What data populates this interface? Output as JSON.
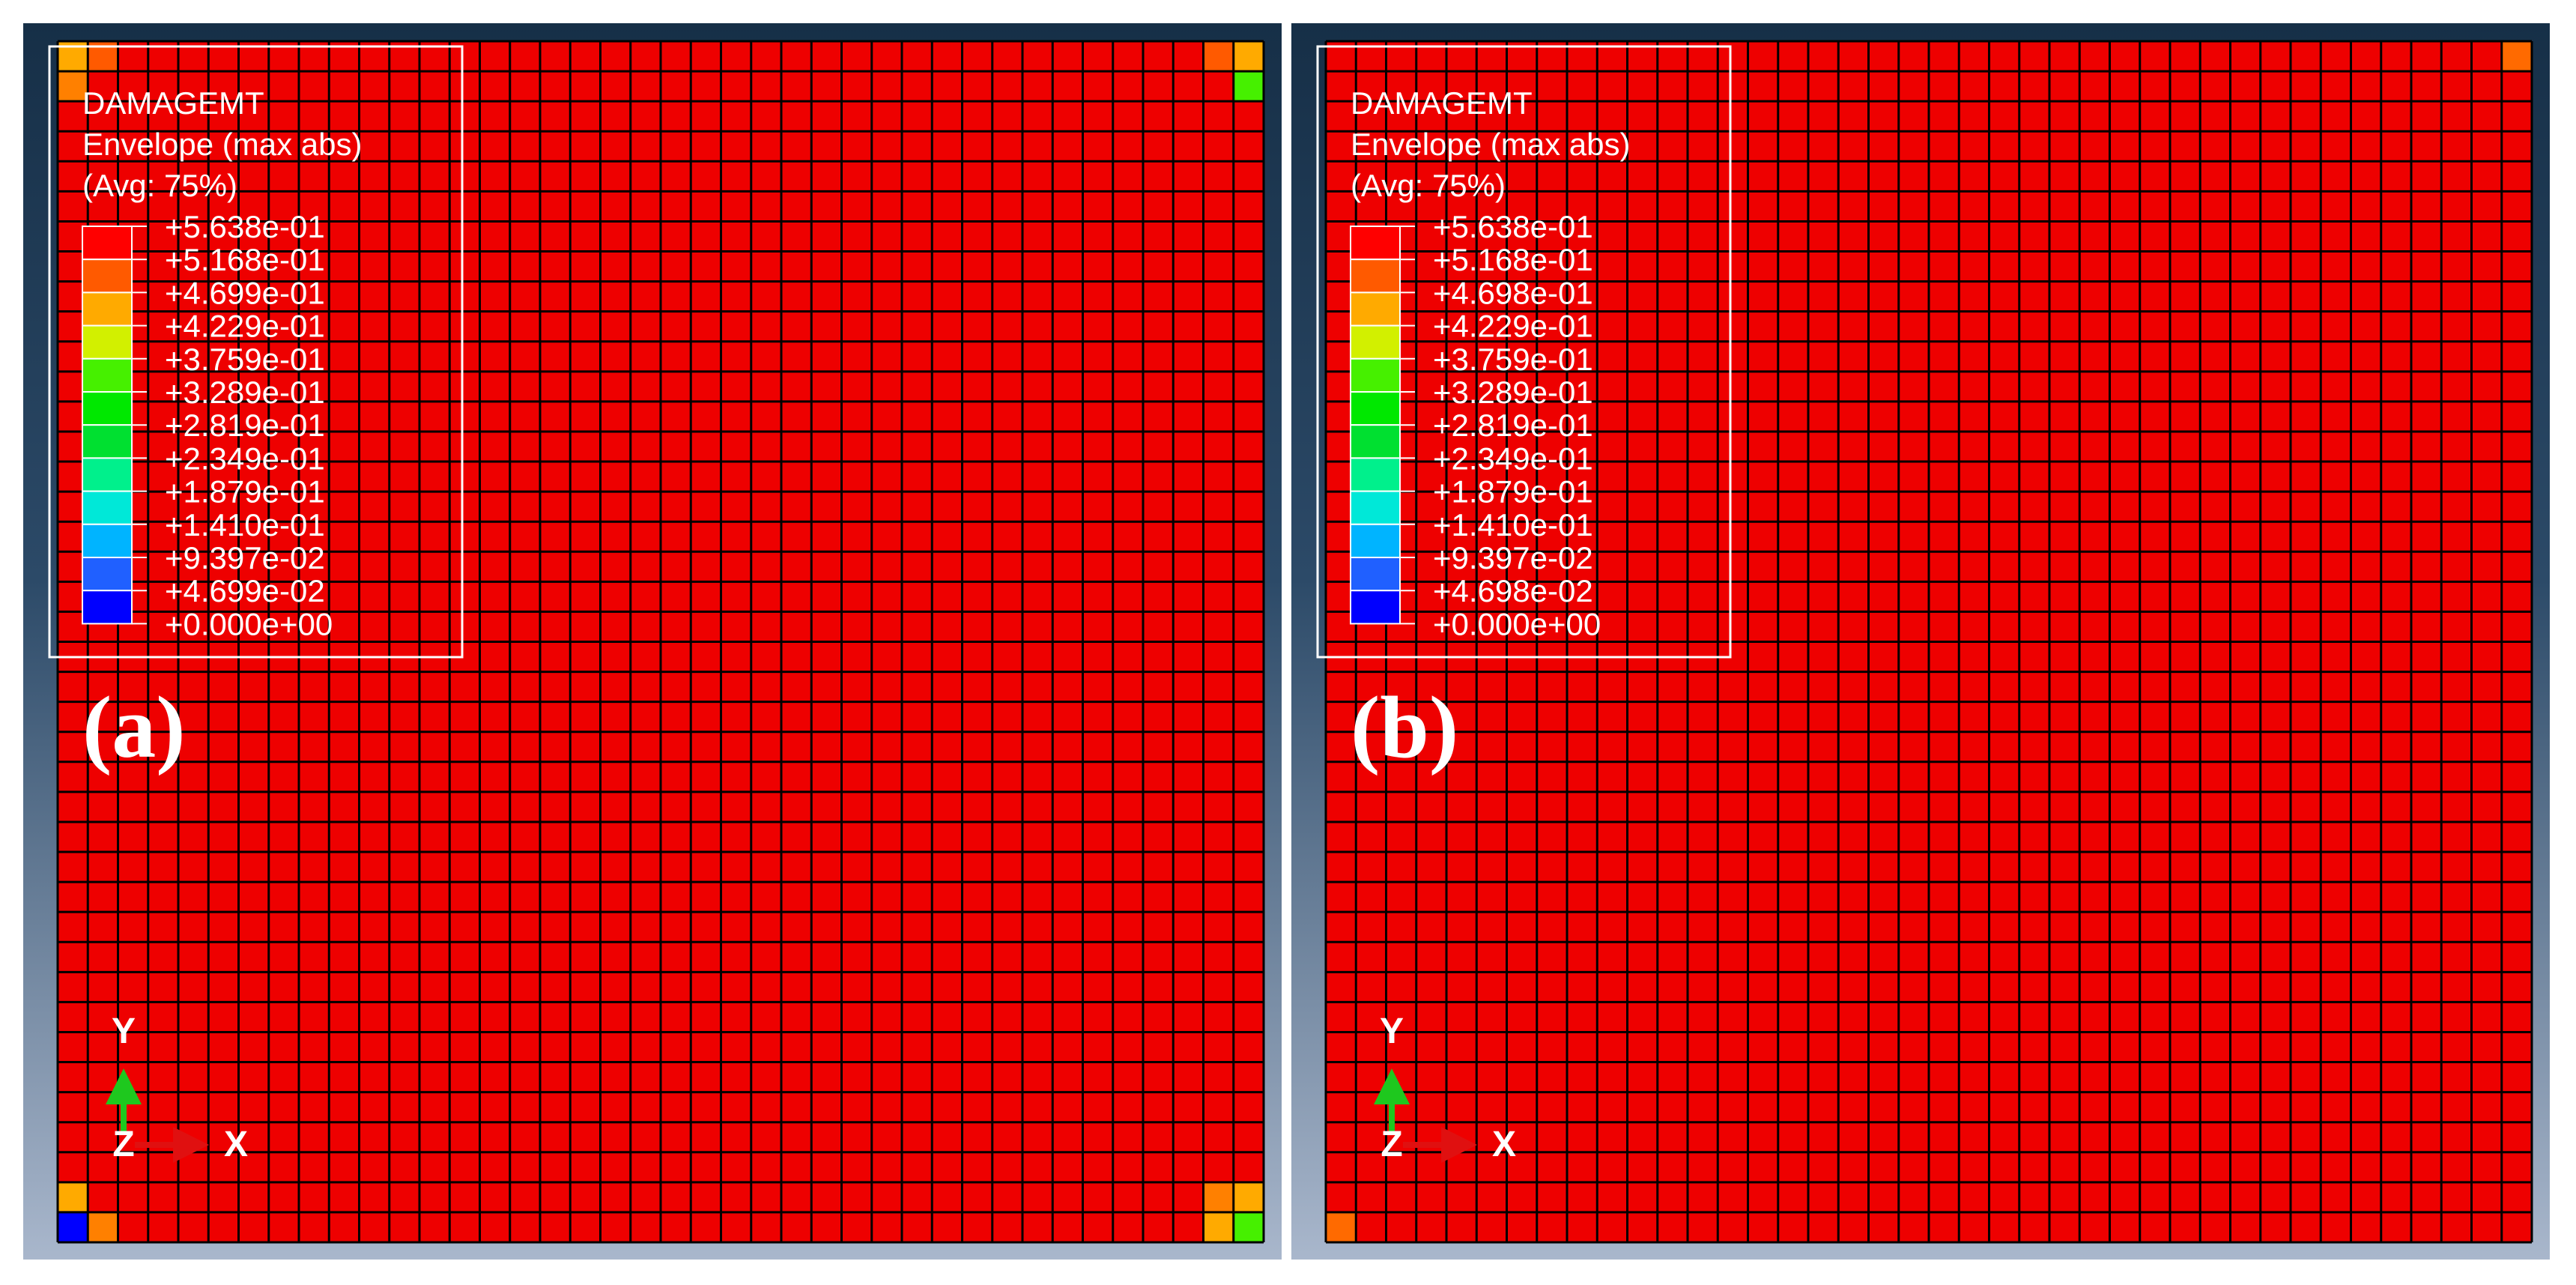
{
  "panels": [
    {
      "label": "(a)",
      "legend": {
        "title": "DAMAGEMT",
        "subtitle": "Envelope (max abs)",
        "averaging": "(Avg: 75%)",
        "levels": [
          "+5.638e-01",
          "+5.168e-01",
          "+4.699e-01",
          "+4.229e-01",
          "+3.759e-01",
          "+3.289e-01",
          "+2.819e-01",
          "+2.349e-01",
          "+1.879e-01",
          "+1.410e-01",
          "+9.397e-02",
          "+4.699e-02",
          "+0.000e+00"
        ]
      },
      "triad": {
        "y": "Y",
        "z": "Z",
        "x": "X"
      }
    },
    {
      "label": "(b)",
      "legend": {
        "title": "DAMAGEMT",
        "subtitle": "Envelope (max abs)",
        "averaging": "(Avg: 75%)",
        "levels": [
          "+5.638e-01",
          "+5.168e-01",
          "+4.698e-01",
          "+4.229e-01",
          "+3.759e-01",
          "+3.289e-01",
          "+2.819e-01",
          "+2.349e-01",
          "+1.879e-01",
          "+1.410e-01",
          "+9.397e-02",
          "+4.698e-02",
          "+0.000e+00"
        ]
      },
      "triad": {
        "y": "Y",
        "z": "Z",
        "x": "X"
      }
    }
  ],
  "legend_colors": [
    "#ff0000",
    "#ff5a00",
    "#ffaa00",
    "#d2f000",
    "#46f000",
    "#00e800",
    "#00e030",
    "#00f08c",
    "#00e8d8",
    "#00b4ff",
    "#2060ff",
    "#0000ff"
  ]
}
